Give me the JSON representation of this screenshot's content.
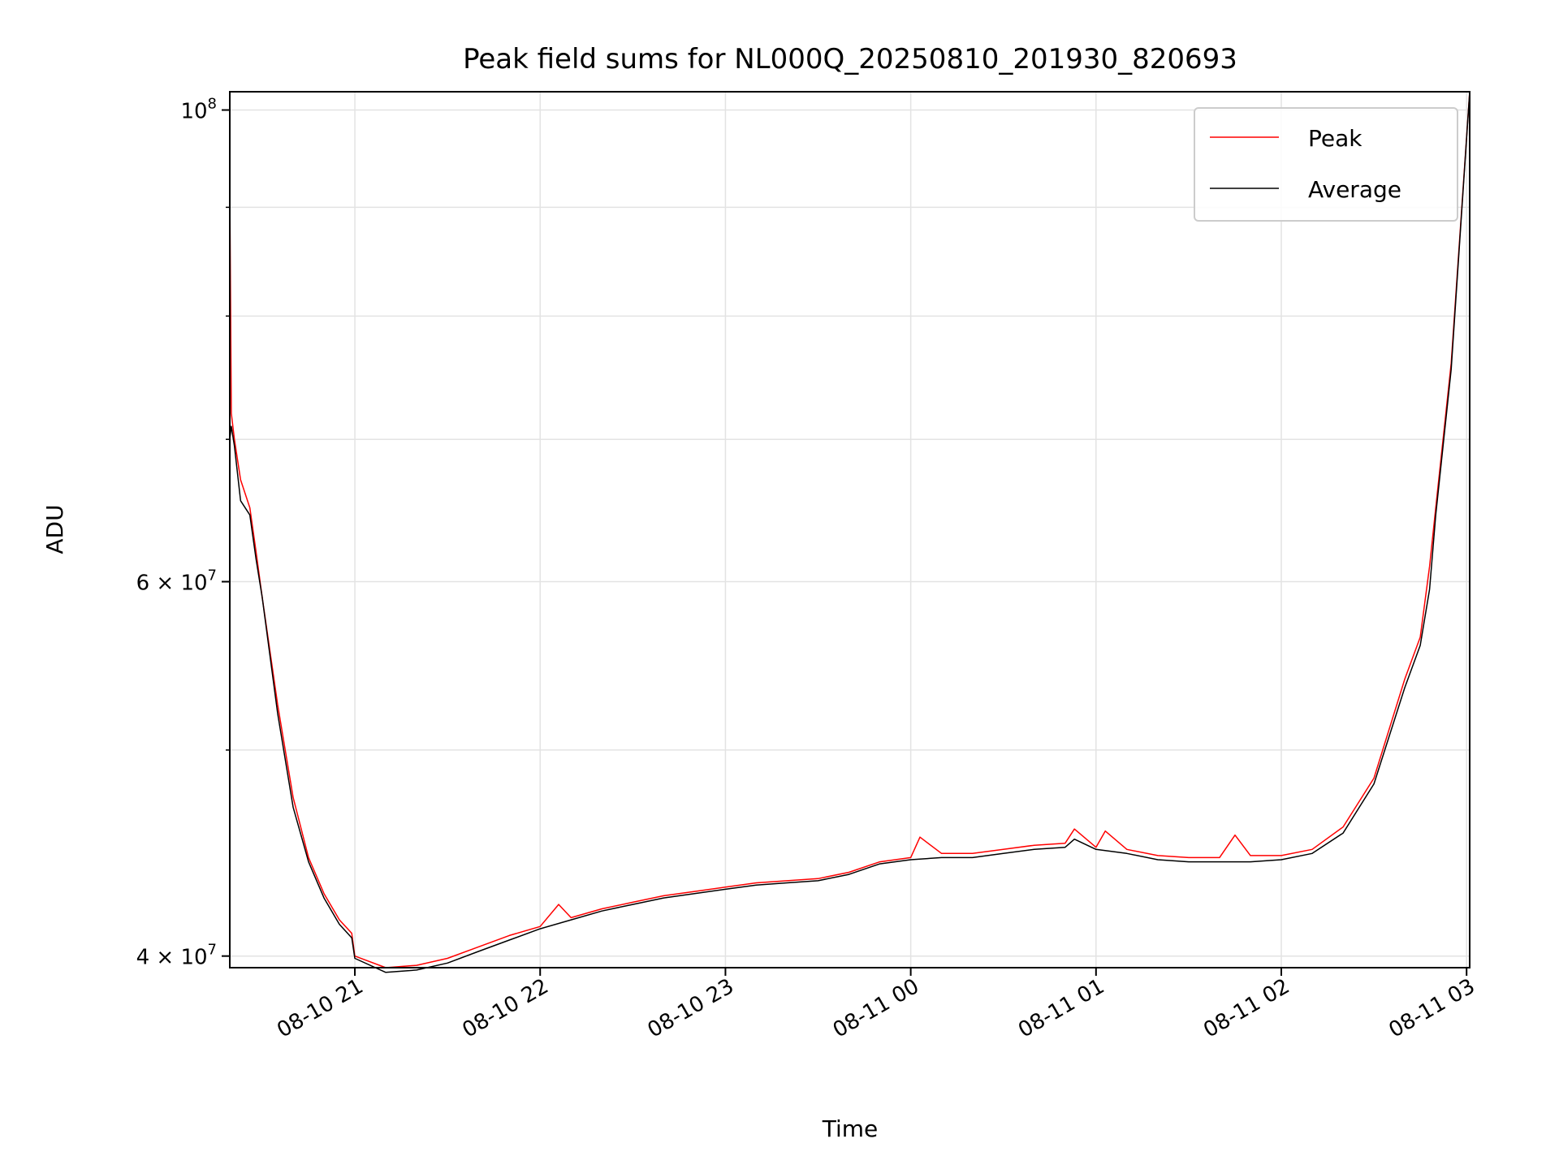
{
  "chart_data": {
    "type": "line",
    "title": "Peak field sums for NL000Q_20250810_201930_820693",
    "xlabel": "Time",
    "ylabel": "ADU",
    "y_scale": "log",
    "grid": true,
    "legend_position": "top-right",
    "xlim": [
      "2025-08-10 20:19:30",
      "2025-08-11 03:01:00"
    ],
    "ylim": [
      39500000,
      102000000
    ],
    "x_ticks": [
      {
        "value": "2025-08-10 21:00",
        "label": "08-10 21"
      },
      {
        "value": "2025-08-10 22:00",
        "label": "08-10 22"
      },
      {
        "value": "2025-08-10 23:00",
        "label": "08-10 23"
      },
      {
        "value": "2025-08-11 00:00",
        "label": "08-11 00"
      },
      {
        "value": "2025-08-11 01:00",
        "label": "08-11 01"
      },
      {
        "value": "2025-08-11 02:00",
        "label": "08-11 02"
      },
      {
        "value": "2025-08-11 03:00",
        "label": "08-11 03"
      }
    ],
    "y_ticks": [
      {
        "value": 40000000,
        "base": "4 × 10",
        "exp": "7"
      },
      {
        "value": 60000000,
        "base": "6 × 10",
        "exp": "7"
      },
      {
        "value": 100000000,
        "base": "10",
        "exp": "8"
      }
    ],
    "y_minor_ticks": [
      50000000,
      70000000,
      80000000,
      90000000
    ],
    "series": [
      {
        "name": "Peak",
        "color": "#ff0000",
        "x": [
          "2025-08-10 20:19:30",
          "2025-08-10 20:20",
          "2025-08-10 20:21",
          "2025-08-10 20:23",
          "2025-08-10 20:26",
          "2025-08-10 20:28",
          "2025-08-10 20:30",
          "2025-08-10 20:35",
          "2025-08-10 20:40",
          "2025-08-10 20:45",
          "2025-08-10 20:50",
          "2025-08-10 20:55",
          "2025-08-10 20:59",
          "2025-08-10 21:00",
          "2025-08-10 21:10",
          "2025-08-10 21:20",
          "2025-08-10 21:30",
          "2025-08-10 21:40",
          "2025-08-10 21:50",
          "2025-08-10 22:00",
          "2025-08-10 22:06",
          "2025-08-10 22:10",
          "2025-08-10 22:20",
          "2025-08-10 22:30",
          "2025-08-10 22:40",
          "2025-08-10 22:50",
          "2025-08-10 23:00",
          "2025-08-10 23:10",
          "2025-08-10 23:20",
          "2025-08-10 23:30",
          "2025-08-10 23:40",
          "2025-08-10 23:50",
          "2025-08-11 00:00",
          "2025-08-11 00:03",
          "2025-08-11 00:10",
          "2025-08-11 00:20",
          "2025-08-11 00:30",
          "2025-08-11 00:40",
          "2025-08-11 00:50",
          "2025-08-11 00:53",
          "2025-08-11 01:00",
          "2025-08-11 01:03",
          "2025-08-11 01:10",
          "2025-08-11 01:20",
          "2025-08-11 01:30",
          "2025-08-11 01:40",
          "2025-08-11 01:45",
          "2025-08-11 01:50",
          "2025-08-11 02:00",
          "2025-08-11 02:10",
          "2025-08-11 02:20",
          "2025-08-11 02:30",
          "2025-08-11 02:40",
          "2025-08-11 02:45",
          "2025-08-11 02:48",
          "2025-08-11 02:50",
          "2025-08-11 02:55",
          "2025-08-11 03:01"
        ],
        "y": [
          92000000,
          72000000,
          70000000,
          67000000,
          65000000,
          62000000,
          59000000,
          52500000,
          47500000,
          44500000,
          42800000,
          41600000,
          41000000,
          40000000,
          39500000,
          39600000,
          39900000,
          40400000,
          40900000,
          41300000,
          42300000,
          41700000,
          42100000,
          42400000,
          42700000,
          42900000,
          43100000,
          43300000,
          43400000,
          43500000,
          43800000,
          44300000,
          44500000,
          45500000,
          44700000,
          44700000,
          44900000,
          45100000,
          45200000,
          45900000,
          45000000,
          45800000,
          44900000,
          44600000,
          44500000,
          44500000,
          45600000,
          44600000,
          44600000,
          44900000,
          46000000,
          48500000,
          54000000,
          56500000,
          61000000,
          65000000,
          76000000,
          102000000
        ]
      },
      {
        "name": "Average",
        "color": "#000000",
        "x": [
          "2025-08-10 20:19:30",
          "2025-08-10 20:20",
          "2025-08-10 20:21",
          "2025-08-10 20:23",
          "2025-08-10 20:26",
          "2025-08-10 20:28",
          "2025-08-10 20:30",
          "2025-08-10 20:35",
          "2025-08-10 20:40",
          "2025-08-10 20:45",
          "2025-08-10 20:50",
          "2025-08-10 20:55",
          "2025-08-10 20:59",
          "2025-08-10 21:00",
          "2025-08-10 21:10",
          "2025-08-10 21:20",
          "2025-08-10 21:30",
          "2025-08-10 21:40",
          "2025-08-10 21:50",
          "2025-08-10 22:00",
          "2025-08-10 22:10",
          "2025-08-10 22:20",
          "2025-08-10 22:30",
          "2025-08-10 22:40",
          "2025-08-10 22:50",
          "2025-08-10 23:00",
          "2025-08-10 23:10",
          "2025-08-10 23:20",
          "2025-08-10 23:30",
          "2025-08-10 23:40",
          "2025-08-10 23:50",
          "2025-08-11 00:00",
          "2025-08-11 00:10",
          "2025-08-11 00:20",
          "2025-08-11 00:30",
          "2025-08-11 00:40",
          "2025-08-11 00:50",
          "2025-08-11 00:53",
          "2025-08-11 01:00",
          "2025-08-11 01:10",
          "2025-08-11 01:20",
          "2025-08-11 01:30",
          "2025-08-11 01:40",
          "2025-08-11 01:50",
          "2025-08-11 02:00",
          "2025-08-11 02:10",
          "2025-08-11 02:20",
          "2025-08-11 02:30",
          "2025-08-11 02:40",
          "2025-08-11 02:45",
          "2025-08-11 02:48",
          "2025-08-11 02:50",
          "2025-08-11 02:55",
          "2025-08-11 03:01"
        ],
        "y": [
          70000000,
          71000000,
          69500000,
          65500000,
          64500000,
          61500000,
          59000000,
          52000000,
          47000000,
          44300000,
          42600000,
          41400000,
          40800000,
          39900000,
          39300000,
          39400000,
          39700000,
          40200000,
          40700000,
          41200000,
          41600000,
          42000000,
          42300000,
          42600000,
          42800000,
          43000000,
          43200000,
          43300000,
          43400000,
          43700000,
          44200000,
          44400000,
          44500000,
          44500000,
          44700000,
          44900000,
          45000000,
          45400000,
          44900000,
          44700000,
          44400000,
          44300000,
          44300000,
          44300000,
          44400000,
          44700000,
          45700000,
          48200000,
          53500000,
          56000000,
          59500000,
          64500000,
          75500000,
          102000000
        ]
      }
    ]
  }
}
